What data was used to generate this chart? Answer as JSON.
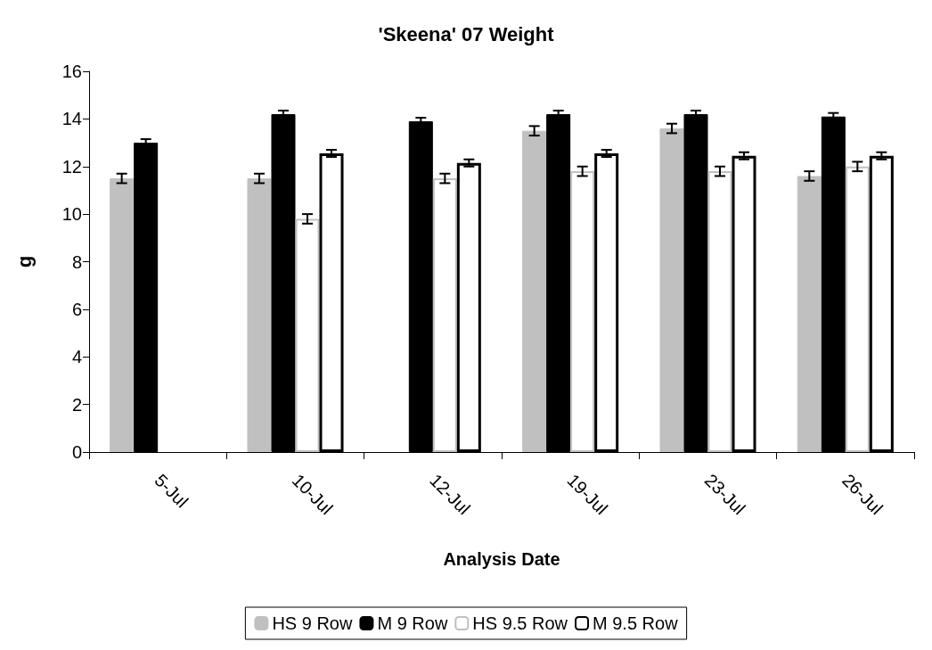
{
  "chart_data": {
    "type": "bar",
    "title": "'Skeena' 07 Weight",
    "xlabel": "Analysis Date",
    "ylabel": "g",
    "categories": [
      "5-Jul",
      "10-Jul",
      "12-Jul",
      "19-Jul",
      "23-Jul",
      "26-Jul"
    ],
    "series": [
      {
        "name": "HS 9 Row",
        "color": "#c0c0c0",
        "values": [
          11.5,
          11.5,
          null,
          13.5,
          13.6,
          11.6
        ],
        "errors": [
          0.2,
          0.2,
          null,
          0.2,
          0.2,
          0.2
        ]
      },
      {
        "name": "M 9 Row",
        "color": "#000000",
        "values": [
          13.0,
          14.2,
          13.9,
          14.2,
          14.2,
          14.1
        ],
        "errors": [
          0.15,
          0.15,
          0.15,
          0.15,
          0.15,
          0.15
        ]
      },
      {
        "name": "HS 9.5 Row",
        "color": "#ffffff",
        "values": [
          null,
          9.8,
          11.5,
          11.8,
          11.8,
          12.0
        ],
        "errors": [
          null,
          0.2,
          0.2,
          0.2,
          0.2,
          0.2
        ]
      },
      {
        "name": "M 9.5 Row",
        "color": "#ffffff",
        "values": [
          null,
          12.55,
          12.15,
          12.55,
          12.45,
          12.45
        ],
        "errors": [
          null,
          0.15,
          0.15,
          0.15,
          0.15,
          0.15
        ]
      }
    ],
    "ylim": [
      0,
      16
    ],
    "yticks": [
      0,
      2,
      4,
      6,
      8,
      10,
      12,
      14,
      16
    ],
    "grid": false,
    "legend": "bottom"
  }
}
